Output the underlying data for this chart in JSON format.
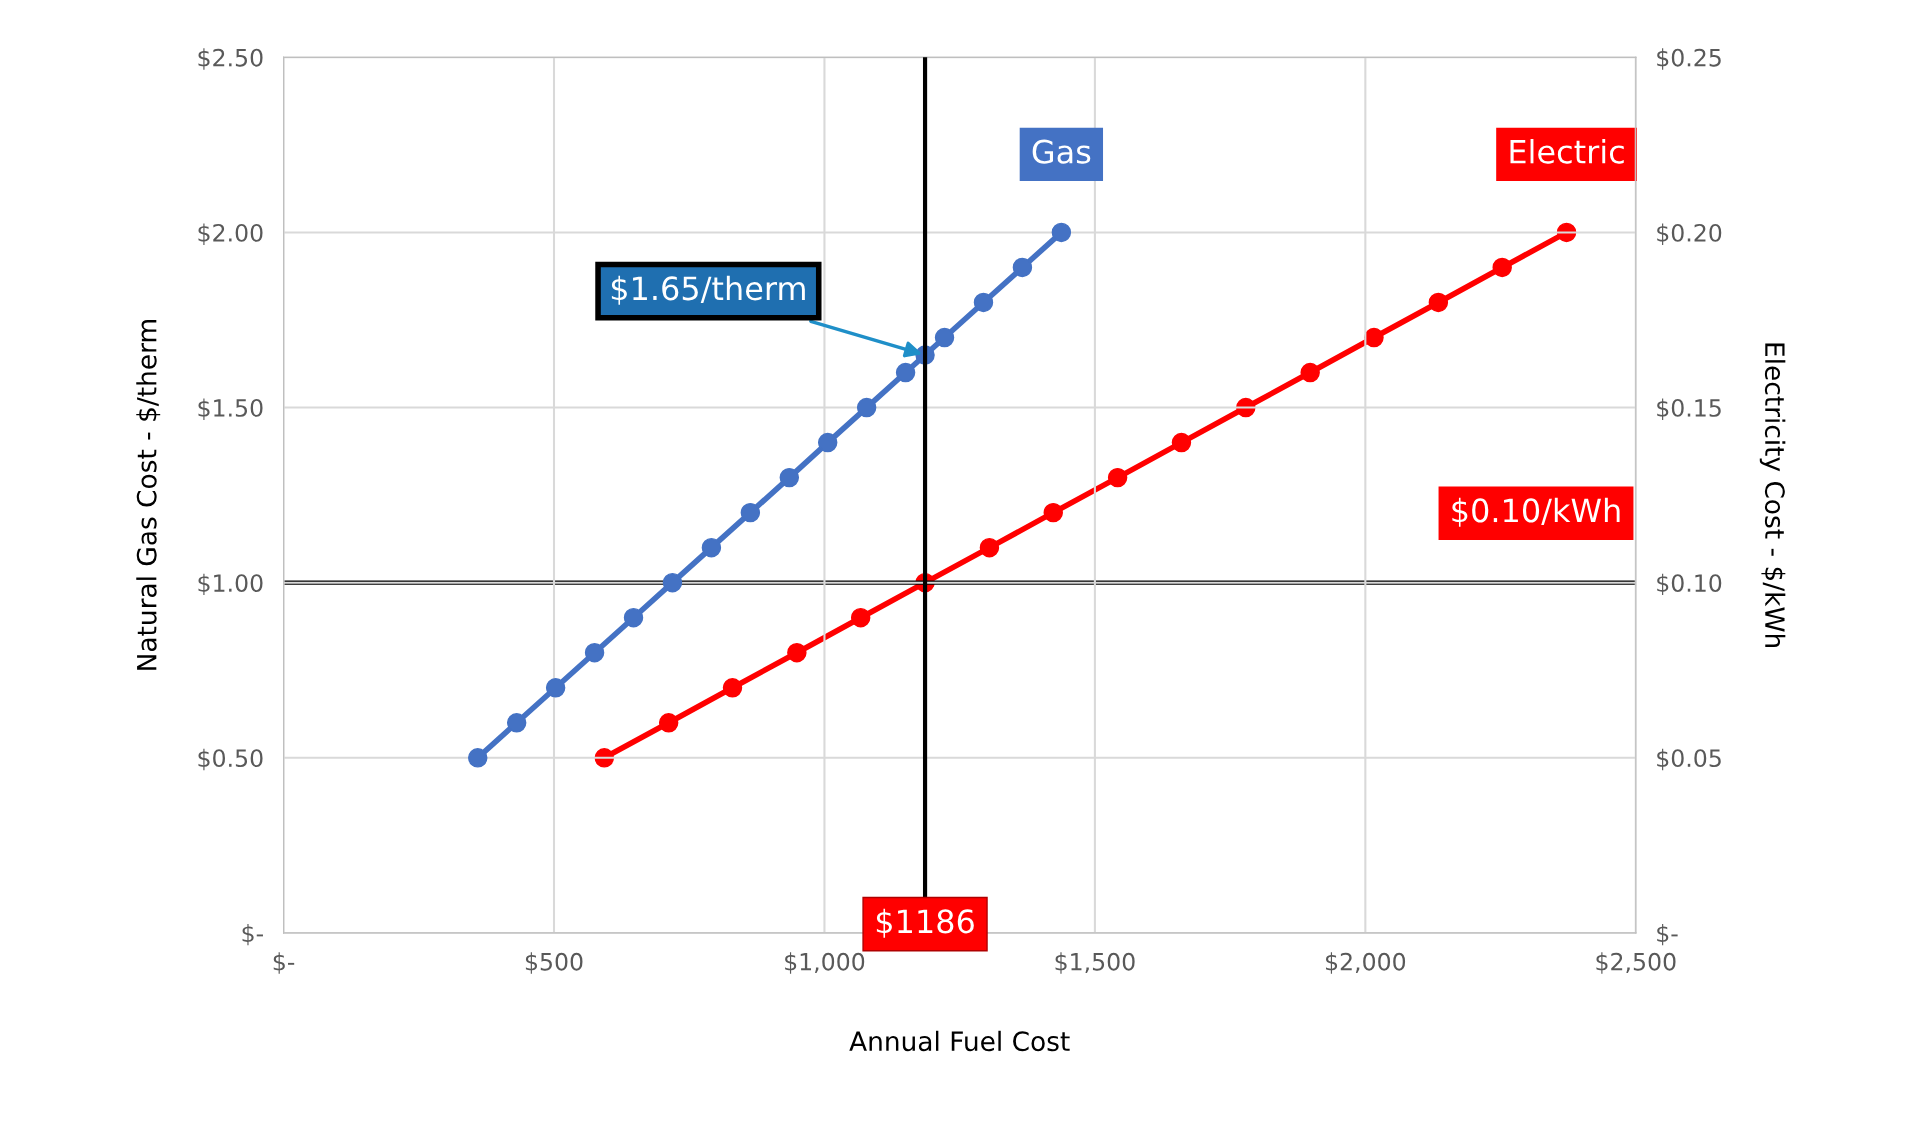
{
  "chart_data": {
    "type": "line",
    "xlabel": "Annual Fuel Cost",
    "ylabel": "Natural Gas Cost - $/therm",
    "y2label": "Electricity Cost - $/kWh",
    "series": [
      {
        "name": "Gas",
        "color": "#4472c4",
        "x": [
          359,
          431,
          503,
          575,
          647,
          719,
          791,
          863,
          935,
          1006,
          1078,
          1150,
          1186,
          1222,
          1294,
          1366,
          1438
        ],
        "values": [
          0.5,
          0.6,
          0.7,
          0.8,
          0.9,
          1.0,
          1.1,
          1.2,
          1.3,
          1.4,
          1.5,
          1.6,
          1.65,
          1.7,
          1.8,
          1.9,
          2.0
        ]
      },
      {
        "name": "Electric",
        "color": "#ff0000",
        "axis": "y2",
        "x": [
          593,
          712,
          830,
          949,
          1067,
          1186,
          1305,
          1423,
          1542,
          1660,
          1779,
          1898,
          2016,
          2135,
          2253,
          2372
        ],
        "values": [
          0.05,
          0.06,
          0.07,
          0.08,
          0.09,
          0.1,
          0.11,
          0.12,
          0.13,
          0.14,
          0.15,
          0.16,
          0.17,
          0.18,
          0.19,
          0.2
        ]
      }
    ],
    "xlim": [
      0,
      2500
    ],
    "xticks": [
      {
        "value": 0,
        "label": "$-"
      },
      {
        "value": 500,
        "label": "$500"
      },
      {
        "value": 1000,
        "label": "$1,000"
      },
      {
        "value": 1500,
        "label": "$1,500"
      },
      {
        "value": 2000,
        "label": "$2,000"
      },
      {
        "value": 2500,
        "label": "$2,500"
      }
    ],
    "ylim": [
      0,
      2.5
    ],
    "yticks": [
      {
        "value": 0,
        "label": "$-"
      },
      {
        "value": 0.5,
        "label": "$0.50"
      },
      {
        "value": 1.0,
        "label": "$1.00"
      },
      {
        "value": 1.5,
        "label": "$1.50"
      },
      {
        "value": 2.0,
        "label": "$2.00"
      },
      {
        "value": 2.5,
        "label": "$2.50"
      }
    ],
    "y2lim": [
      0,
      0.25
    ],
    "y2ticks": [
      {
        "value": 0,
        "label": "$-"
      },
      {
        "value": 0.05,
        "label": "$0.05"
      },
      {
        "value": 0.1,
        "label": "$0.10"
      },
      {
        "value": 0.15,
        "label": "$0.15"
      },
      {
        "value": 0.2,
        "label": "$0.20"
      },
      {
        "value": 0.25,
        "label": "$0.25"
      }
    ],
    "ref_lines": [
      {
        "axis": "x",
        "value": 1186,
        "label": "$1186",
        "color": "#000000"
      },
      {
        "axis": "y2",
        "value": 0.1,
        "label": "$0.10/kWh",
        "color": "#000000"
      }
    ],
    "annotations": [
      {
        "text": "$1.65/therm",
        "x": 1186,
        "y": 1.65
      }
    ],
    "grid": true,
    "legend": false,
    "marker": "circle",
    "line_style": "solid"
  }
}
